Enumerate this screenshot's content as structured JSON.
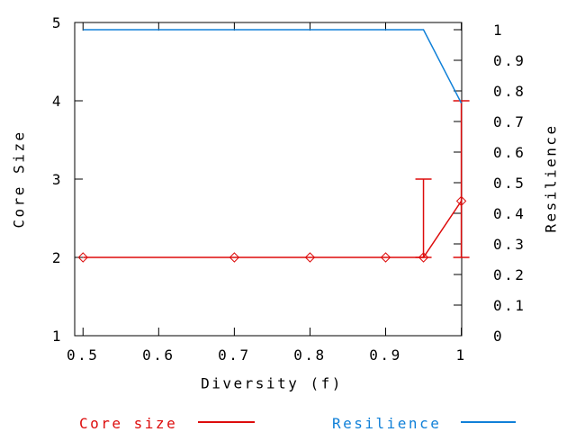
{
  "chart_data": {
    "type": "line",
    "title": "",
    "xlabel": "Diversity (f)",
    "ylabel_left": "Core Size",
    "ylabel_right": "Resilience",
    "grid": false,
    "background": "#ffffff",
    "axis_color": "#000000",
    "axes": {
      "x": {
        "min": 0.489,
        "max": 1.0005,
        "tick_values": [
          0.5,
          0.6,
          0.7,
          0.8,
          0.9,
          1
        ],
        "tick_labels": [
          "0.5",
          "0.6",
          "0.7",
          "0.8",
          "0.9",
          "1"
        ]
      },
      "y_left": {
        "min": 1,
        "max": 5,
        "tick_values": [
          1,
          2,
          3,
          4,
          5
        ],
        "tick_labels": [
          "1",
          "2",
          "3",
          "4",
          "5"
        ]
      },
      "y_right": {
        "min": 0,
        "max": 1.0235,
        "tick_values": [
          0,
          0.1,
          0.2,
          0.3,
          0.4,
          0.5,
          0.6,
          0.7,
          0.8,
          0.9,
          1
        ],
        "tick_labels": [
          "0",
          "0.1",
          "0.2",
          "0.3",
          "0.4",
          "0.5",
          "0.6",
          "0.7",
          "0.8",
          "0.9",
          "1"
        ]
      }
    },
    "series": [
      {
        "name": "Core size",
        "axis": "left",
        "color": "#dd0c0c",
        "marker": "open-diamond",
        "x": [
          0.5,
          0.7,
          0.8,
          0.9,
          0.95,
          1.0
        ],
        "y": [
          2,
          2,
          2,
          2,
          2,
          2.72
        ],
        "error_bars": [
          {
            "x": 0.95,
            "low": 2.0,
            "high": 3.0
          },
          {
            "x": 1.0,
            "low": 2.0,
            "high": 4.0
          }
        ]
      },
      {
        "name": "Resilience",
        "axis": "right",
        "color": "#1080d8",
        "marker": "none",
        "x": [
          0.5,
          0.7,
          0.8,
          0.9,
          0.95,
          1.0
        ],
        "y": [
          1,
          1,
          1,
          1,
          1,
          0.76
        ],
        "error_bars": []
      }
    ],
    "legend": {
      "position": "bottom",
      "entries": [
        {
          "label": "Core size",
          "color": "#dd0c0c"
        },
        {
          "label": "Resilience",
          "color": "#1080d8"
        }
      ]
    }
  }
}
